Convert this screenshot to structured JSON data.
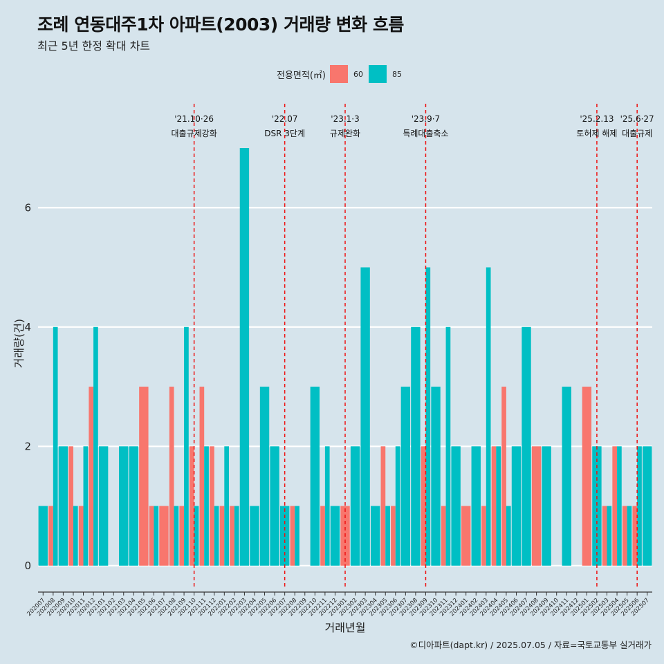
{
  "header": {
    "title": "조례 연동대주1차 아파트(2003) 거래량 변화 흐름",
    "subtitle": "최근 5년 한정 확대 차트"
  },
  "legend": {
    "title": "전용면적(㎡)",
    "items": [
      {
        "label": "60",
        "color": "#f8766d"
      },
      {
        "label": "85",
        "color": "#00bfc4"
      }
    ]
  },
  "caption": "©디아파트(dapt.kr) / 2025.07.05 / 자료=국토교통부 실거래가",
  "chart_data": {
    "type": "bar",
    "title": "조례 연동대주1차 아파트(2003) 거래량 변화 흐름",
    "subtitle": "최근 5년 한정 확대 차트",
    "xlabel": "거래년월",
    "ylabel": "거래량(건)",
    "ylim": [
      -0.35,
      7.8
    ],
    "yticks": [
      0,
      2,
      4,
      6
    ],
    "grid": true,
    "legend_position": "top",
    "categories": [
      "202007",
      "202008",
      "202009",
      "202010",
      "202011",
      "202012",
      "202101",
      "202102",
      "202103",
      "202104",
      "202105",
      "202106",
      "202107",
      "202108",
      "202109",
      "202110",
      "202111",
      "202112",
      "202201",
      "202202",
      "202203",
      "202204",
      "202205",
      "202206",
      "202207",
      "202208",
      "202209",
      "202210",
      "202211",
      "202212",
      "202301",
      "202302",
      "202303",
      "202304",
      "202305",
      "202306",
      "202307",
      "202308",
      "202309",
      "202310",
      "202311",
      "202312",
      "202401",
      "202402",
      "202403",
      "202404",
      "202405",
      "202406",
      "202407",
      "202408",
      "202409",
      "202410",
      "202411",
      "202412",
      "202501",
      "202502",
      "202503",
      "202504",
      "202505",
      "202506",
      "202507"
    ],
    "series": [
      {
        "name": "60",
        "color": "#f8766d",
        "values": [
          0,
          1,
          0,
          2,
          1,
          3,
          0,
          0,
          0,
          0,
          3,
          1,
          1,
          3,
          1,
          2,
          3,
          2,
          1,
          1,
          0,
          0,
          0,
          0,
          0,
          1,
          0,
          0,
          1,
          0,
          1,
          0,
          0,
          0,
          2,
          1,
          0,
          0,
          2,
          0,
          1,
          0,
          1,
          0,
          1,
          2,
          3,
          0,
          0,
          2,
          0,
          0,
          0,
          0,
          3,
          0,
          1,
          2,
          1,
          1,
          0
        ]
      },
      {
        "name": "85",
        "color": "#00bfc4",
        "values": [
          1,
          4,
          2,
          1,
          2,
          4,
          2,
          0,
          2,
          2,
          0,
          1,
          0,
          1,
          4,
          1,
          2,
          1,
          2,
          1,
          7,
          1,
          3,
          2,
          1,
          1,
          0,
          3,
          2,
          1,
          0,
          2,
          5,
          1,
          1,
          2,
          3,
          4,
          5,
          3,
          4,
          2,
          0,
          2,
          5,
          2,
          1,
          2,
          4,
          0,
          2,
          0,
          3,
          0,
          0,
          2,
          1,
          2,
          1,
          2,
          2
        ]
      }
    ],
    "annotations": [
      {
        "category": "202110",
        "date": "'21.10·26",
        "label": "대출규제강화"
      },
      {
        "category": "202207",
        "date": "'22.07",
        "label": "DSR 3단계"
      },
      {
        "category": "202301",
        "date": "'23.1·3",
        "label": "규제완화"
      },
      {
        "category": "202309",
        "date": "'23.9·7",
        "label": "특례대출축소"
      },
      {
        "category": "202502",
        "date": "'25.2.13",
        "label": "토허제 해제"
      },
      {
        "category": "202506",
        "date": "'25.6·27",
        "label": "대출규제"
      }
    ]
  }
}
